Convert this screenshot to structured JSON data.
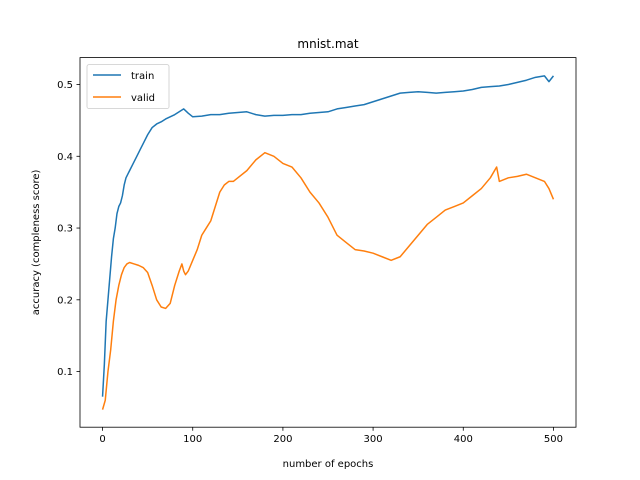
{
  "chart_data": {
    "type": "line",
    "title": "mnist.mat",
    "xlabel": "number of epochs",
    "ylabel": "accuracy (compleness score)",
    "xlim": [
      -25,
      525
    ],
    "ylim": [
      0.0225,
      0.5375
    ],
    "xticks": [
      0,
      100,
      200,
      300,
      400,
      500
    ],
    "yticks": [
      0.1,
      0.2,
      0.3,
      0.4,
      0.5
    ],
    "xtick_labels": [
      "0",
      "100",
      "200",
      "300",
      "400",
      "500"
    ],
    "ytick_labels": [
      "0.1",
      "0.2",
      "0.3",
      "0.4",
      "0.5"
    ],
    "legend": {
      "placement": "top-left",
      "entries": [
        "train",
        "valid"
      ]
    },
    "grid": false,
    "series": [
      {
        "name": "train",
        "color": "#1f77b4",
        "x": [
          0,
          2,
          4,
          6,
          8,
          10,
          12,
          14,
          16,
          18,
          20,
          22,
          24,
          26,
          28,
          30,
          34,
          38,
          42,
          46,
          50,
          55,
          60,
          65,
          70,
          75,
          80,
          85,
          90,
          95,
          100,
          110,
          120,
          130,
          140,
          150,
          160,
          170,
          180,
          190,
          200,
          210,
          220,
          230,
          240,
          250,
          260,
          270,
          280,
          290,
          300,
          310,
          320,
          330,
          340,
          350,
          360,
          370,
          380,
          390,
          400,
          410,
          420,
          430,
          440,
          450,
          460,
          470,
          480,
          490,
          495,
          500
        ],
        "values": [
          0.065,
          0.11,
          0.17,
          0.2,
          0.23,
          0.26,
          0.285,
          0.3,
          0.32,
          0.33,
          0.335,
          0.345,
          0.36,
          0.37,
          0.375,
          0.38,
          0.39,
          0.4,
          0.41,
          0.42,
          0.43,
          0.44,
          0.445,
          0.448,
          0.452,
          0.455,
          0.458,
          0.462,
          0.466,
          0.46,
          0.455,
          0.456,
          0.458,
          0.458,
          0.46,
          0.461,
          0.462,
          0.458,
          0.456,
          0.457,
          0.457,
          0.458,
          0.458,
          0.46,
          0.461,
          0.462,
          0.466,
          0.468,
          0.47,
          0.472,
          0.476,
          0.48,
          0.484,
          0.488,
          0.489,
          0.49,
          0.489,
          0.488,
          0.489,
          0.49,
          0.491,
          0.493,
          0.496,
          0.497,
          0.498,
          0.5,
          0.503,
          0.506,
          0.51,
          0.512,
          0.504,
          0.512
        ]
      },
      {
        "name": "valid",
        "color": "#ff7f0e",
        "x": [
          0,
          3,
          6,
          9,
          12,
          15,
          18,
          21,
          24,
          27,
          30,
          35,
          40,
          45,
          50,
          55,
          60,
          65,
          70,
          75,
          80,
          85,
          88,
          90,
          92,
          95,
          100,
          105,
          110,
          115,
          120,
          125,
          130,
          135,
          140,
          145,
          150,
          160,
          170,
          180,
          190,
          200,
          210,
          220,
          230,
          240,
          250,
          260,
          270,
          280,
          290,
          300,
          310,
          320,
          330,
          340,
          350,
          360,
          370,
          380,
          390,
          400,
          410,
          420,
          430,
          437,
          440,
          450,
          460,
          470,
          480,
          490,
          495,
          500
        ],
        "values": [
          0.047,
          0.06,
          0.1,
          0.13,
          0.17,
          0.2,
          0.22,
          0.235,
          0.245,
          0.25,
          0.252,
          0.25,
          0.248,
          0.245,
          0.238,
          0.22,
          0.2,
          0.19,
          0.188,
          0.195,
          0.22,
          0.24,
          0.25,
          0.24,
          0.235,
          0.24,
          0.255,
          0.27,
          0.29,
          0.3,
          0.31,
          0.33,
          0.35,
          0.36,
          0.365,
          0.365,
          0.37,
          0.38,
          0.395,
          0.405,
          0.4,
          0.39,
          0.385,
          0.37,
          0.35,
          0.335,
          0.315,
          0.29,
          0.28,
          0.27,
          0.268,
          0.265,
          0.26,
          0.255,
          0.26,
          0.275,
          0.29,
          0.305,
          0.315,
          0.325,
          0.33,
          0.335,
          0.345,
          0.355,
          0.37,
          0.385,
          0.365,
          0.37,
          0.372,
          0.375,
          0.37,
          0.365,
          0.355,
          0.34
        ]
      }
    ]
  }
}
